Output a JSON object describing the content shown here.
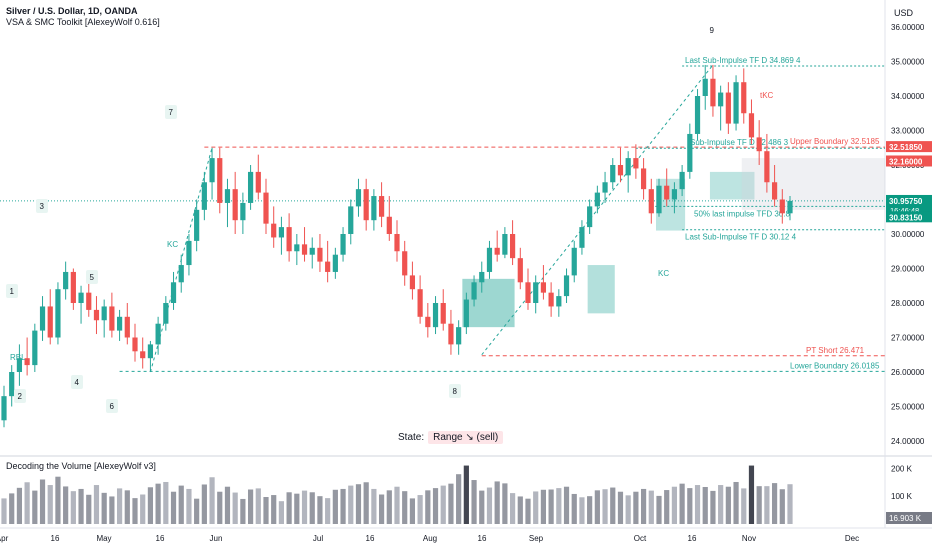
{
  "header": {
    "symbol": "Silver / U.S. Dollar, 1D, OANDA",
    "indicator": "VSA & SMC Toolkit [AlexeyWolf 0.616]",
    "currency": "USD"
  },
  "volume_panel": {
    "title": "Decoding the Volume [AlexeyWolf v3]"
  },
  "state": {
    "label": "State:",
    "value": "Range ↘ (sell)"
  },
  "colors": {
    "up": "#26a69a",
    "down": "#ef5350",
    "grid": "#f0f3fa",
    "level_green": "#26a69a",
    "level_red": "#ef5350"
  },
  "chart_data": {
    "type": "candlestick",
    "y_axis": {
      "min": 24,
      "max": 36,
      "ticks": [
        24,
        25,
        26,
        27,
        28,
        29,
        30,
        31,
        32,
        33,
        34,
        35,
        36
      ],
      "tick_labels": [
        "24.00000",
        "25.00000",
        "26.00000",
        "27.00000",
        "28.00000",
        "29.00000",
        "30.00000",
        "31.00000",
        "32.00000",
        "33.00000",
        "34.00000",
        "35.00000",
        "36.00000"
      ]
    },
    "x_axis": {
      "labels": [
        "Apr",
        "16",
        "May",
        "16",
        "Jun",
        "Jul",
        "16",
        "Aug",
        "16",
        "Sep",
        "Oct",
        "16",
        "Nov",
        "Dec"
      ]
    },
    "price_tags": [
      {
        "value": 32.5185,
        "label": "32.51850",
        "color": "#ef5350"
      },
      {
        "value": 32.16,
        "label": "32.16000",
        "color": "#ef5350"
      },
      {
        "value": 30.9575,
        "label": "30.95750",
        "sub": "16:46:48",
        "color": "#089981"
      },
      {
        "value": 30.8315,
        "label": "30.83150",
        "color": "#089981"
      }
    ],
    "levels": [
      {
        "name": "upper-boundary",
        "value": 32.5185,
        "label": "Upper Boundary 32.5185",
        "color": "#ef5350"
      },
      {
        "name": "pt-short",
        "value": 26.471,
        "label": "PT Short 26.471",
        "color": "#ef5350"
      },
      {
        "name": "lower-boundary",
        "value": 26.0185,
        "label": "Lower Boundary 26.0185",
        "color": "#26a69a"
      },
      {
        "name": "last-sub-impulse-high",
        "value": 34.8694,
        "label": "Last Sub-Impulse TF D 34.869 4",
        "color": "#26a69a"
      },
      {
        "name": "sub-impulse",
        "value": 32.4863,
        "label": "Sub-Impulse TF D 32.486 3",
        "color": "#26a69a"
      },
      {
        "name": "50-last-impulse",
        "value": 30.8,
        "label": "50% last impulse TFD 30.8",
        "color": "#26a69a"
      },
      {
        "name": "last-sub-impulse-low",
        "value": 30.124,
        "label": "Last Sub-Impulse TF D 30.12 4",
        "color": "#26a69a"
      }
    ],
    "wave_labels": [
      "1",
      "2",
      "3",
      "4",
      "5",
      "6",
      "7",
      "8",
      "9"
    ],
    "annotations": [
      "RBL",
      "KC",
      "KC",
      "tKC"
    ],
    "candles": [
      [
        24.6,
        25.6,
        24.4,
        25.3
      ],
      [
        25.3,
        26.2,
        25.0,
        26.0
      ],
      [
        26.0,
        26.8,
        25.6,
        26.4
      ],
      [
        26.4,
        27.0,
        25.9,
        26.2
      ],
      [
        26.2,
        27.4,
        26.0,
        27.2
      ],
      [
        27.2,
        28.2,
        26.9,
        27.9
      ],
      [
        27.9,
        28.4,
        26.8,
        27.0
      ],
      [
        27.0,
        28.6,
        26.8,
        28.4
      ],
      [
        28.4,
        29.2,
        28.1,
        28.9
      ],
      [
        28.9,
        29.0,
        27.8,
        28.0
      ],
      [
        28.0,
        28.5,
        27.4,
        28.3
      ],
      [
        28.3,
        28.8,
        27.6,
        27.8
      ],
      [
        27.8,
        28.2,
        27.1,
        27.5
      ],
      [
        27.5,
        28.1,
        27.0,
        27.9
      ],
      [
        27.9,
        28.3,
        27.0,
        27.2
      ],
      [
        27.2,
        27.8,
        26.9,
        27.6
      ],
      [
        27.6,
        28.0,
        26.8,
        27.0
      ],
      [
        27.0,
        27.4,
        26.3,
        26.6
      ],
      [
        26.6,
        27.0,
        26.1,
        26.4
      ],
      [
        26.4,
        26.9,
        26.0,
        26.8
      ],
      [
        26.8,
        27.6,
        26.5,
        27.4
      ],
      [
        27.4,
        28.2,
        27.2,
        28.0
      ],
      [
        28.0,
        28.9,
        27.8,
        28.6
      ],
      [
        28.6,
        29.4,
        28.3,
        29.1
      ],
      [
        29.1,
        30.0,
        28.8,
        29.8
      ],
      [
        29.8,
        31.0,
        29.5,
        30.7
      ],
      [
        30.7,
        31.8,
        30.4,
        31.5
      ],
      [
        31.5,
        32.5,
        31.0,
        32.2
      ],
      [
        32.2,
        32.5,
        30.6,
        30.9
      ],
      [
        30.9,
        31.6,
        30.2,
        31.3
      ],
      [
        31.3,
        31.8,
        30.0,
        30.4
      ],
      [
        30.4,
        31.2,
        30.0,
        30.9
      ],
      [
        30.9,
        32.0,
        30.7,
        31.8
      ],
      [
        31.8,
        32.3,
        31.0,
        31.2
      ],
      [
        31.2,
        31.6,
        30.0,
        30.3
      ],
      [
        30.3,
        30.8,
        29.6,
        29.9
      ],
      [
        29.9,
        30.5,
        29.4,
        30.2
      ],
      [
        30.2,
        30.6,
        29.2,
        29.5
      ],
      [
        29.5,
        30.0,
        29.1,
        29.7
      ],
      [
        29.7,
        30.2,
        29.2,
        29.4
      ],
      [
        29.4,
        29.9,
        29.0,
        29.6
      ],
      [
        29.6,
        30.0,
        28.9,
        29.2
      ],
      [
        29.2,
        29.8,
        28.6,
        28.9
      ],
      [
        28.9,
        29.6,
        28.7,
        29.4
      ],
      [
        29.4,
        30.2,
        29.2,
        30.0
      ],
      [
        30.0,
        31.0,
        29.7,
        30.8
      ],
      [
        30.8,
        31.6,
        30.5,
        31.3
      ],
      [
        31.3,
        31.6,
        30.1,
        30.4
      ],
      [
        30.4,
        31.3,
        30.1,
        31.1
      ],
      [
        31.1,
        31.5,
        30.2,
        30.5
      ],
      [
        30.5,
        31.1,
        29.8,
        30.0
      ],
      [
        30.0,
        30.4,
        29.2,
        29.5
      ],
      [
        29.5,
        29.8,
        28.5,
        28.8
      ],
      [
        28.8,
        29.2,
        28.1,
        28.4
      ],
      [
        28.4,
        28.8,
        27.4,
        27.6
      ],
      [
        27.6,
        28.0,
        27.0,
        27.3
      ],
      [
        27.3,
        28.2,
        27.1,
        28.0
      ],
      [
        28.0,
        28.4,
        27.2,
        27.4
      ],
      [
        27.4,
        27.8,
        26.5,
        26.8
      ],
      [
        26.8,
        27.5,
        26.5,
        27.3
      ],
      [
        27.3,
        28.3,
        27.1,
        28.1
      ],
      [
        28.1,
        28.8,
        27.9,
        28.6
      ],
      [
        28.6,
        29.2,
        28.3,
        28.9
      ],
      [
        28.9,
        29.8,
        28.7,
        29.6
      ],
      [
        29.6,
        30.1,
        29.2,
        29.4
      ],
      [
        29.4,
        30.2,
        29.3,
        30.0
      ],
      [
        30.0,
        30.4,
        29.1,
        29.3
      ],
      [
        29.3,
        29.6,
        28.4,
        28.6
      ],
      [
        28.6,
        29.0,
        27.8,
        28.0
      ],
      [
        28.0,
        28.8,
        27.7,
        28.6
      ],
      [
        28.6,
        29.1,
        28.1,
        28.3
      ],
      [
        28.3,
        28.6,
        27.6,
        27.9
      ],
      [
        27.9,
        28.4,
        27.6,
        28.2
      ],
      [
        28.2,
        29.0,
        28.0,
        28.8
      ],
      [
        28.8,
        29.8,
        28.6,
        29.6
      ],
      [
        29.6,
        30.4,
        29.4,
        30.2
      ],
      [
        30.2,
        31.0,
        30.0,
        30.8
      ],
      [
        30.8,
        31.4,
        30.6,
        31.2
      ],
      [
        31.2,
        31.8,
        30.9,
        31.5
      ],
      [
        31.5,
        32.2,
        31.3,
        32.0
      ],
      [
        32.0,
        32.5,
        31.5,
        31.7
      ],
      [
        31.7,
        32.4,
        31.2,
        32.2
      ],
      [
        32.2,
        32.6,
        31.6,
        31.9
      ],
      [
        31.9,
        32.2,
        31.0,
        31.3
      ],
      [
        31.3,
        31.6,
        30.3,
        30.6
      ],
      [
        30.6,
        31.6,
        30.5,
        31.4
      ],
      [
        31.4,
        31.9,
        30.8,
        31.0
      ],
      [
        31.0,
        31.5,
        30.6,
        31.3
      ],
      [
        31.3,
        32.0,
        31.1,
        31.8
      ],
      [
        31.8,
        33.2,
        31.6,
        32.9
      ],
      [
        32.9,
        34.2,
        32.7,
        34.0
      ],
      [
        34.0,
        34.9,
        33.6,
        34.5
      ],
      [
        34.5,
        34.9,
        33.4,
        33.7
      ],
      [
        33.7,
        34.3,
        33.0,
        34.1
      ],
      [
        34.1,
        34.4,
        32.9,
        33.2
      ],
      [
        33.2,
        34.6,
        33.0,
        34.4
      ],
      [
        34.4,
        34.8,
        33.2,
        33.5
      ],
      [
        33.5,
        33.9,
        32.6,
        32.8
      ],
      [
        32.8,
        33.3,
        32.0,
        32.4
      ],
      [
        32.4,
        32.9,
        31.2,
        31.5
      ],
      [
        31.5,
        32.0,
        30.8,
        31.0
      ],
      [
        31.0,
        31.3,
        30.3,
        30.6
      ],
      [
        30.6,
        31.1,
        30.4,
        30.96
      ]
    ],
    "volumes": [
      92,
      110,
      130,
      150,
      120,
      160,
      140,
      170,
      135,
      118,
      126,
      105,
      140,
      112,
      99,
      128,
      121,
      93,
      106,
      132,
      145,
      151,
      116,
      138,
      126,
      91,
      142,
      168,
      116,
      134,
      113,
      90,
      124,
      128,
      97,
      104,
      82,
      114,
      109,
      120,
      114,
      100,
      93,
      123,
      126,
      138,
      143,
      150,
      126,
      106,
      121,
      134,
      118,
      92,
      104,
      121,
      129,
      138,
      145,
      179,
      210,
      158,
      120,
      131,
      153,
      146,
      111,
      99,
      91,
      117,
      123,
      124,
      129,
      134,
      108,
      96,
      100,
      121,
      125,
      131,
      116,
      103,
      116,
      126,
      120,
      101,
      122,
      134,
      145,
      129,
      140,
      133,
      119,
      140,
      134,
      151,
      128,
      210,
      136,
      136,
      147,
      125,
      143
    ],
    "volume_axis": {
      "ticks": [
        100000,
        200000
      ],
      "tick_labels": [
        "100 K",
        "200 K"
      ],
      "current": "16.903 K"
    }
  }
}
